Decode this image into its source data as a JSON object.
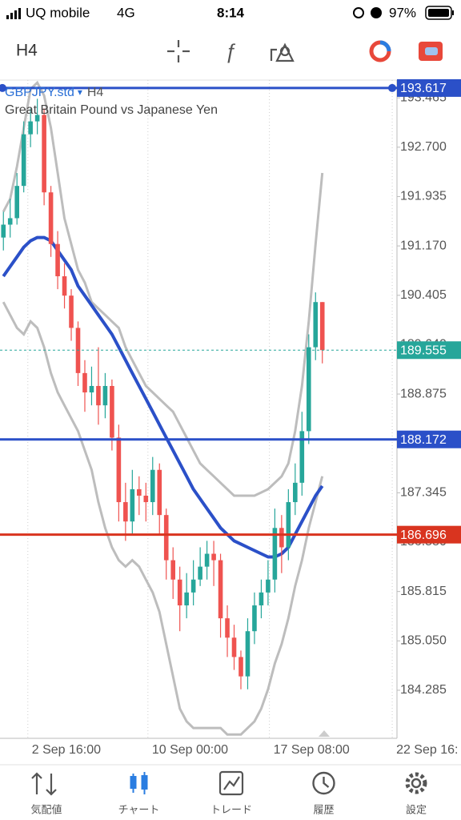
{
  "status_bar": {
    "carrier": "UQ mobile",
    "network": "4G",
    "time": "8:14",
    "battery": "97%"
  },
  "toolbar": {
    "timeframe": "H4"
  },
  "chart_data": {
    "type": "candlestick",
    "symbol": "GBPJPY.std",
    "timeframe": "H4",
    "title": "Great Britain Pound vs Japanese Yen",
    "up_color": "#26a69a",
    "down_color": "#ef5350",
    "open": [
      191.3,
      191.5,
      191.6,
      192.1,
      192.9,
      193.1,
      193.2,
      192.0,
      191.2,
      190.7,
      190.4,
      189.9,
      189.2,
      188.9,
      189.0,
      188.7,
      189.0,
      188.2,
      187.2,
      186.9,
      187.4,
      187.3,
      187.2,
      187.7,
      187.0,
      186.3,
      186.0,
      185.6,
      185.8,
      186.0,
      186.2,
      186.4,
      186.3,
      185.4,
      185.1,
      184.8,
      184.5,
      185.2,
      185.6,
      185.8,
      186.0,
      186.8,
      186.5,
      187.2,
      187.5,
      188.3,
      189.6,
      190.3
    ],
    "high": [
      191.7,
      191.9,
      192.3,
      193.1,
      193.3,
      193.45,
      193.3,
      192.1,
      191.4,
      190.9,
      190.5,
      190.0,
      189.4,
      189.3,
      189.6,
      189.2,
      189.1,
      188.4,
      187.5,
      187.7,
      187.6,
      187.5,
      187.9,
      187.8,
      187.1,
      186.5,
      186.2,
      186.1,
      186.3,
      186.5,
      186.6,
      186.6,
      186.4,
      185.6,
      185.3,
      184.9,
      185.4,
      185.8,
      186.0,
      186.3,
      187.1,
      187.0,
      187.4,
      187.8,
      188.6,
      189.8,
      190.45,
      190.3
    ],
    "low": [
      191.1,
      191.3,
      191.5,
      192.0,
      192.7,
      192.9,
      191.8,
      191.0,
      190.5,
      190.2,
      189.7,
      189.0,
      188.6,
      188.7,
      188.4,
      188.5,
      188.0,
      186.9,
      186.6,
      186.7,
      187.0,
      186.9,
      187.0,
      186.7,
      186.0,
      185.7,
      185.2,
      185.4,
      185.6,
      185.9,
      186.0,
      185.9,
      185.1,
      184.8,
      184.6,
      184.3,
      184.3,
      185.0,
      185.4,
      185.6,
      185.8,
      186.1,
      186.3,
      187.0,
      187.3,
      188.1,
      189.4,
      189.35
    ],
    "close": [
      191.5,
      191.6,
      192.1,
      192.9,
      193.1,
      193.2,
      192.0,
      191.2,
      190.7,
      190.4,
      189.9,
      189.2,
      188.9,
      189.0,
      188.7,
      189.0,
      188.2,
      187.2,
      186.9,
      187.4,
      187.3,
      187.2,
      187.7,
      187.0,
      186.3,
      186.0,
      185.6,
      185.8,
      186.0,
      186.2,
      186.4,
      186.3,
      185.4,
      185.1,
      184.8,
      184.5,
      185.2,
      185.6,
      185.8,
      186.0,
      186.8,
      186.5,
      187.2,
      187.5,
      188.3,
      189.6,
      190.3,
      189.555
    ],
    "moving_average": {
      "color": "#2b50c8",
      "values": [
        190.7,
        190.85,
        191.0,
        191.15,
        191.25,
        191.3,
        191.3,
        191.25,
        191.1,
        190.95,
        190.8,
        190.55,
        190.4,
        190.25,
        190.1,
        189.95,
        189.8,
        189.6,
        189.4,
        189.2,
        189.0,
        188.8,
        188.6,
        188.4,
        188.2,
        188.0,
        187.8,
        187.6,
        187.4,
        187.25,
        187.1,
        186.95,
        186.8,
        186.7,
        186.6,
        186.55,
        186.5,
        186.45,
        186.4,
        186.35,
        186.35,
        186.4,
        186.5,
        186.7,
        186.9,
        187.1,
        187.3,
        187.45
      ]
    },
    "bands": [
      {
        "color": "#bdbdbd",
        "values": [
          191.7,
          191.9,
          192.4,
          193.0,
          193.6,
          193.7,
          193.5,
          193.0,
          192.3,
          191.6,
          191.2,
          190.8,
          190.6,
          190.3,
          190.2,
          190.1,
          190.0,
          189.9,
          189.6,
          189.4,
          189.2,
          189.0,
          188.9,
          188.8,
          188.7,
          188.6,
          188.4,
          188.2,
          188.0,
          187.8,
          187.7,
          187.6,
          187.5,
          187.4,
          187.3,
          187.3,
          187.3,
          187.3,
          187.35,
          187.4,
          187.5,
          187.6,
          187.8,
          188.3,
          189.0,
          190.0,
          191.2,
          192.3
        ]
      },
      {
        "color": "#bdbdbd",
        "values": [
          190.3,
          190.1,
          189.9,
          189.8,
          190.0,
          189.9,
          189.6,
          189.2,
          188.9,
          188.7,
          188.5,
          188.3,
          188.0,
          187.7,
          187.2,
          186.8,
          186.5,
          186.3,
          186.2,
          186.3,
          186.2,
          186.0,
          185.8,
          185.5,
          185.0,
          184.5,
          184.0,
          183.8,
          183.7,
          183.7,
          183.7,
          183.7,
          183.7,
          183.6,
          183.6,
          183.6,
          183.7,
          183.8,
          184.0,
          184.3,
          184.7,
          185.0,
          185.4,
          185.9,
          186.3,
          186.8,
          187.2,
          187.6
        ]
      }
    ],
    "hlines": [
      {
        "value": 193.617,
        "color": "#2b50c8"
      },
      {
        "value": 188.172,
        "color": "#2b50c8"
      },
      {
        "value": 186.696,
        "color": "#d9341f"
      }
    ],
    "bid": {
      "value": 189.555,
      "color": "#26a69a"
    },
    "ylim": [
      183.54,
      193.74
    ],
    "yticks": [
      184.285,
      {
        "value": 185.05,
        "label": "185.050"
      },
      185.815,
      {
        "value": 186.58,
        "label": "186.580"
      },
      187.345,
      {
        "value": 188.11,
        "label": "188.110"
      },
      188.875,
      {
        "value": 189.64,
        "label": "189.640"
      },
      190.405,
      {
        "value": 191.17,
        "label": "191.170"
      },
      191.935,
      {
        "value": 192.7,
        "label": "192.700"
      },
      193.465
    ],
    "xlim": [
      0,
      58.5
    ],
    "xticks": [
      {
        "value": 4.1,
        "label": "2 Sep 16:00"
      },
      {
        "value": 21.8,
        "label": "10 Sep 00:00"
      },
      {
        "value": 39.7,
        "label": "17 Sep 08:00"
      },
      {
        "value": 57.8,
        "label": "22 Sep 16:"
      }
    ]
  },
  "tabs": [
    {
      "label": "気配値"
    },
    {
      "label": "チャート"
    },
    {
      "label": "トレード"
    },
    {
      "label": "履歴"
    },
    {
      "label": "設定"
    }
  ]
}
